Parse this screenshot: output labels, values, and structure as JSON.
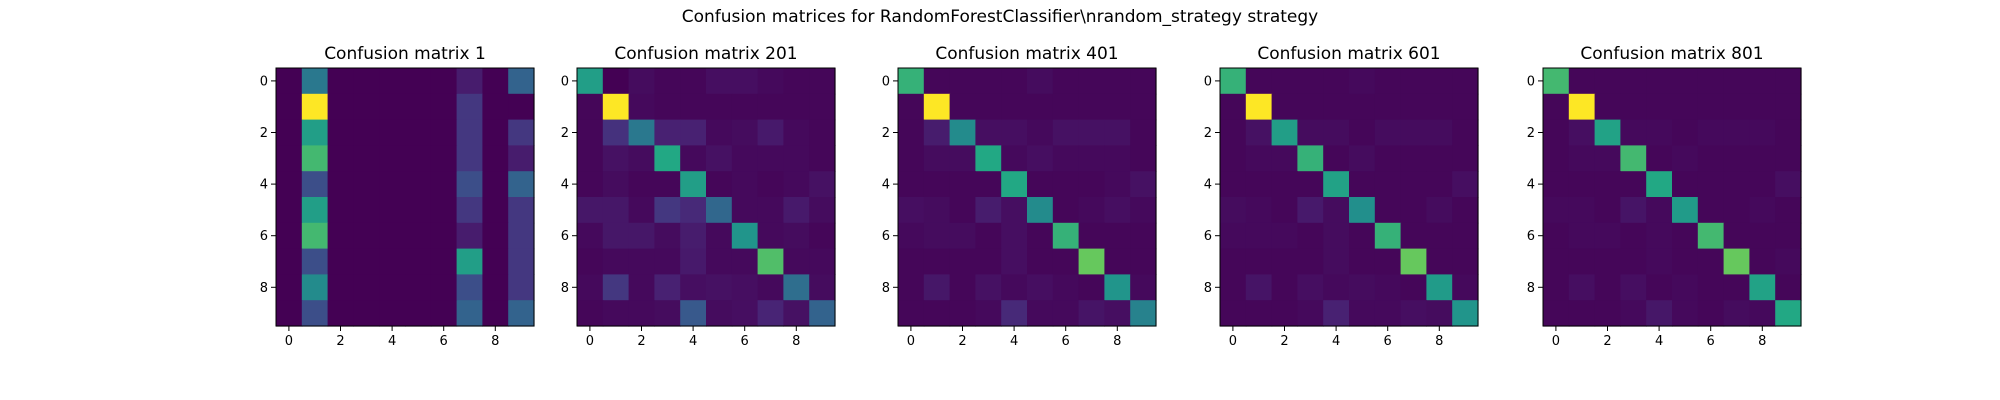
{
  "figure": {
    "suptitle": "Confusion matrices for RandomForestClassifier\\nrandom_strategy strategy"
  },
  "chart_data": [
    {
      "type": "heatmap",
      "title": "Confusion matrix 1",
      "x_ticks": [
        0,
        2,
        4,
        6,
        8
      ],
      "y_ticks": [
        0,
        2,
        4,
        6,
        8
      ],
      "colormap": "viridis",
      "matrix": [
        [
          0,
          5,
          0,
          0,
          0,
          0,
          0,
          1,
          0,
          4
        ],
        [
          0,
          10,
          0,
          0,
          0,
          0,
          0,
          2,
          0,
          0
        ],
        [
          0,
          7,
          0,
          0,
          0,
          0,
          0,
          2,
          0,
          2
        ],
        [
          0,
          8,
          0,
          0,
          0,
          0,
          0,
          2,
          0,
          1
        ],
        [
          0,
          3,
          0,
          0,
          0,
          0,
          0,
          3,
          0,
          4
        ],
        [
          0,
          7,
          0,
          0,
          0,
          0,
          0,
          2,
          0,
          2
        ],
        [
          0,
          8,
          0,
          0,
          0,
          0,
          0,
          1,
          0,
          2
        ],
        [
          0,
          3,
          0,
          0,
          0,
          0,
          0,
          7,
          0,
          2
        ],
        [
          0,
          6,
          0,
          0,
          0,
          0,
          0,
          3,
          0,
          2
        ],
        [
          0,
          3,
          0,
          0,
          0,
          0,
          0,
          4,
          0,
          4
        ]
      ]
    },
    {
      "type": "heatmap",
      "title": "Confusion matrix 201",
      "x_ticks": [
        0,
        2,
        4,
        6,
        8
      ],
      "y_ticks": [
        0,
        2,
        4,
        6,
        8
      ],
      "colormap": "viridis",
      "matrix": [
        [
          7,
          0,
          0.4,
          0.2,
          0.2,
          0.5,
          0.5,
          0.3,
          0.2,
          0.2
        ],
        [
          0.2,
          10,
          0.3,
          0.2,
          0.2,
          0.2,
          0.2,
          0.2,
          0.2,
          0.2
        ],
        [
          0.2,
          1.8,
          5,
          1.2,
          1.2,
          0.3,
          0.4,
          0.9,
          0.3,
          0.2
        ],
        [
          0.2,
          0.6,
          0.4,
          7.5,
          0.3,
          0.6,
          0.3,
          0.3,
          0.3,
          0.2
        ],
        [
          0.2,
          0.4,
          0.2,
          0.2,
          7,
          0.2,
          0.3,
          0.2,
          0.3,
          0.6
        ],
        [
          0.8,
          0.8,
          0.3,
          2.0,
          1.5,
          4.2,
          0.3,
          0.3,
          0.9,
          0.4
        ],
        [
          0.3,
          0.8,
          0.8,
          0.4,
          1.0,
          0.3,
          6.5,
          0.3,
          0.4,
          0.2
        ],
        [
          0.2,
          0.3,
          0.3,
          0.3,
          0.9,
          0.3,
          0.3,
          8.2,
          0.3,
          0.3
        ],
        [
          0.3,
          2.0,
          0.3,
          1.2,
          0.5,
          0.6,
          0.5,
          0.3,
          4.5,
          0.4
        ],
        [
          0.2,
          0.3,
          0.3,
          0.4,
          3.5,
          0.4,
          0.5,
          1.3,
          0.6,
          4.0
        ]
      ]
    },
    {
      "type": "heatmap",
      "title": "Confusion matrix 401",
      "x_ticks": [
        0,
        2,
        4,
        6,
        8
      ],
      "y_ticks": [
        0,
        2,
        4,
        6,
        8
      ],
      "colormap": "viridis",
      "matrix": [
        [
          7.8,
          0.2,
          0.2,
          0.2,
          0.2,
          0.4,
          0.2,
          0.2,
          0.2,
          0.2
        ],
        [
          0.2,
          10,
          0.2,
          0.2,
          0.2,
          0.2,
          0.2,
          0.2,
          0.2,
          0.2
        ],
        [
          0.2,
          1.0,
          6.0,
          0.5,
          0.5,
          0.3,
          0.6,
          0.6,
          0.6,
          0.2
        ],
        [
          0.2,
          0.4,
          0.4,
          7.5,
          0.3,
          0.5,
          0.3,
          0.3,
          0.3,
          0.2
        ],
        [
          0.2,
          0.2,
          0.2,
          0.2,
          7.5,
          0.2,
          0.2,
          0.2,
          0.3,
          0.6
        ],
        [
          0.5,
          0.4,
          0.2,
          1.0,
          0.5,
          6.0,
          0.2,
          0.3,
          0.5,
          0.3
        ],
        [
          0.3,
          0.4,
          0.4,
          0.2,
          0.5,
          0.2,
          7.8,
          0.2,
          0.2,
          0.2
        ],
        [
          0.2,
          0.2,
          0.2,
          0.2,
          0.5,
          0.2,
          0.2,
          8.5,
          0.2,
          0.2
        ],
        [
          0.2,
          0.8,
          0.2,
          0.6,
          0.3,
          0.5,
          0.3,
          0.2,
          6.5,
          0.3
        ],
        [
          0.2,
          0.2,
          0.2,
          0.3,
          1.5,
          0.3,
          0.3,
          0.7,
          0.5,
          5.5
        ]
      ]
    },
    {
      "type": "heatmap",
      "title": "Confusion matrix 601",
      "x_ticks": [
        0,
        2,
        4,
        6,
        8
      ],
      "y_ticks": [
        0,
        2,
        4,
        6,
        8
      ],
      "colormap": "viridis",
      "matrix": [
        [
          7.8,
          0.2,
          0.2,
          0.2,
          0.2,
          0.3,
          0.2,
          0.2,
          0.2,
          0.2
        ],
        [
          0.2,
          10,
          0.2,
          0.2,
          0.2,
          0.2,
          0.2,
          0.2,
          0.2,
          0.2
        ],
        [
          0.2,
          0.6,
          7.0,
          0.4,
          0.4,
          0.2,
          0.4,
          0.4,
          0.4,
          0.2
        ],
        [
          0.2,
          0.3,
          0.3,
          7.8,
          0.2,
          0.4,
          0.2,
          0.2,
          0.2,
          0.2
        ],
        [
          0.2,
          0.2,
          0.2,
          0.2,
          7.2,
          0.2,
          0.2,
          0.2,
          0.2,
          0.5
        ],
        [
          0.4,
          0.3,
          0.2,
          0.9,
          0.4,
          6.2,
          0.2,
          0.2,
          0.4,
          0.2
        ],
        [
          0.3,
          0.3,
          0.3,
          0.2,
          0.4,
          0.2,
          7.8,
          0.2,
          0.2,
          0.2
        ],
        [
          0.2,
          0.2,
          0.2,
          0.2,
          0.4,
          0.2,
          0.2,
          8.5,
          0.2,
          0.2
        ],
        [
          0.2,
          0.7,
          0.2,
          0.5,
          0.3,
          0.4,
          0.3,
          0.2,
          6.8,
          0.3
        ],
        [
          0.2,
          0.2,
          0.2,
          0.3,
          1.2,
          0.3,
          0.3,
          0.5,
          0.4,
          6.5
        ]
      ]
    },
    {
      "type": "heatmap",
      "title": "Confusion matrix 801",
      "x_ticks": [
        0,
        2,
        4,
        6,
        8
      ],
      "y_ticks": [
        0,
        2,
        4,
        6,
        8
      ],
      "colormap": "viridis",
      "matrix": [
        [
          8.0,
          0.2,
          0.2,
          0.2,
          0.2,
          0.2,
          0.2,
          0.2,
          0.2,
          0.2
        ],
        [
          0.2,
          10,
          0.2,
          0.2,
          0.2,
          0.2,
          0.2,
          0.2,
          0.2,
          0.2
        ],
        [
          0.2,
          0.5,
          7.2,
          0.3,
          0.3,
          0.2,
          0.3,
          0.3,
          0.3,
          0.2
        ],
        [
          0.2,
          0.3,
          0.3,
          8.0,
          0.2,
          0.3,
          0.2,
          0.2,
          0.2,
          0.2
        ],
        [
          0.2,
          0.2,
          0.2,
          0.2,
          7.5,
          0.2,
          0.2,
          0.2,
          0.2,
          0.5
        ],
        [
          0.3,
          0.3,
          0.2,
          0.7,
          0.3,
          6.8,
          0.2,
          0.2,
          0.3,
          0.2
        ],
        [
          0.2,
          0.3,
          0.3,
          0.2,
          0.3,
          0.2,
          8.0,
          0.2,
          0.2,
          0.2
        ],
        [
          0.2,
          0.2,
          0.2,
          0.2,
          0.3,
          0.2,
          0.2,
          8.5,
          0.2,
          0.3
        ],
        [
          0.2,
          0.5,
          0.2,
          0.5,
          0.2,
          0.3,
          0.2,
          0.2,
          7.2,
          0.2
        ],
        [
          0.2,
          0.2,
          0.2,
          0.3,
          0.8,
          0.3,
          0.2,
          0.4,
          0.3,
          7.5
        ]
      ]
    }
  ]
}
